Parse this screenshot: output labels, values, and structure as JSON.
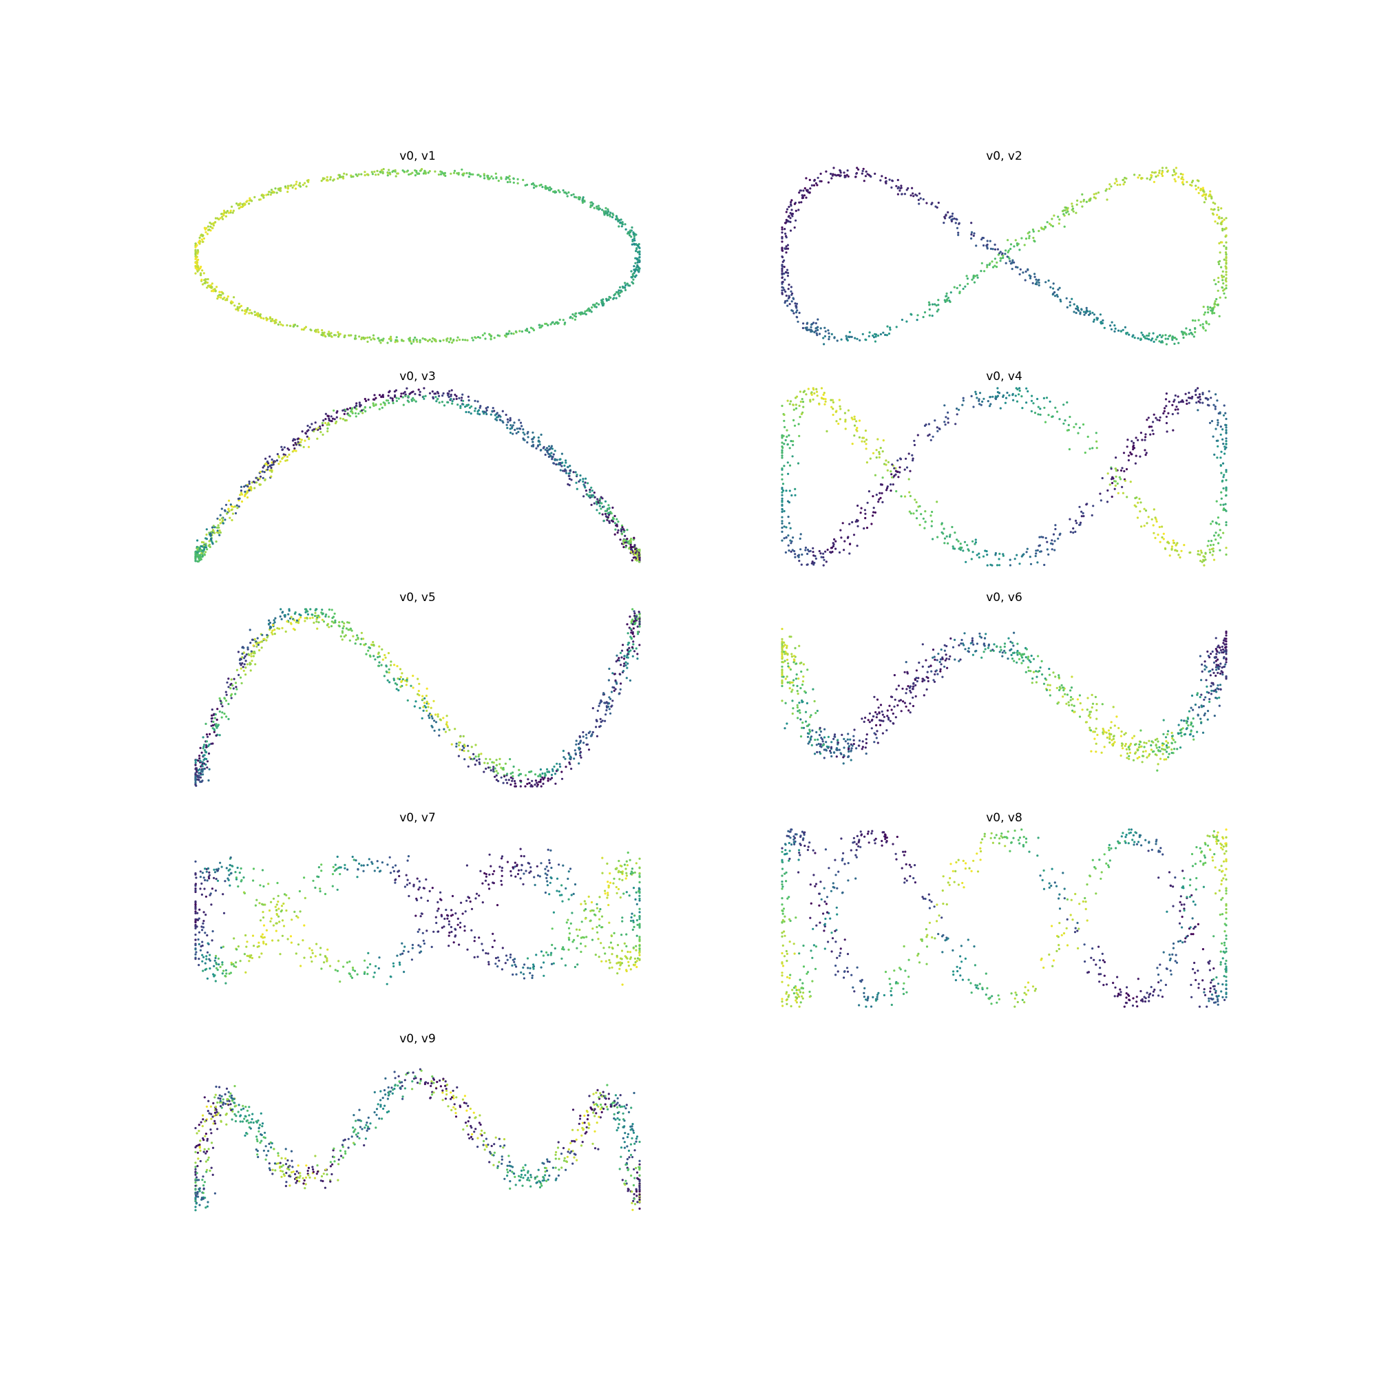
{
  "chart_data": {
    "type": "scatter",
    "description_free": true,
    "colormap": "viridis",
    "colormap_stops": [
      "#440154",
      "#3b528b",
      "#21918c",
      "#5ec962",
      "#fde725"
    ],
    "x_variable": "v0",
    "axes_visible": false,
    "panels": [
      {
        "title": "v0, v1",
        "y_variable": "v1",
        "curve": "ellipse",
        "freq": 1,
        "spread": 0.018
      },
      {
        "title": "v0, v2",
        "y_variable": "v2",
        "curve": "figure-eight",
        "freq": 2,
        "spread": 0.035
      },
      {
        "title": "v0, v3",
        "y_variable": "v3",
        "curve": "arch",
        "freq": 3,
        "spread": 0.03
      },
      {
        "title": "v0, v4",
        "y_variable": "v4",
        "curve": "double-lobe",
        "freq": 4,
        "spread": 0.06
      },
      {
        "title": "v0, v5",
        "y_variable": "v5",
        "curve": "s-wave",
        "freq": 5,
        "spread": 0.04
      },
      {
        "title": "v0, v6",
        "y_variable": "v6",
        "curve": "m-wave",
        "freq": 6,
        "spread": 0.08
      },
      {
        "title": "v0, v7",
        "y_variable": "v7",
        "curve": "twist",
        "freq": 7,
        "spread": 0.09
      },
      {
        "title": "v0, v8",
        "y_variable": "v8",
        "curve": "triple-lobe",
        "freq": 8,
        "spread": 0.06
      },
      {
        "title": "v0, v9",
        "y_variable": "v9",
        "curve": "w-wave",
        "freq": 9,
        "spread": 0.07
      }
    ]
  }
}
